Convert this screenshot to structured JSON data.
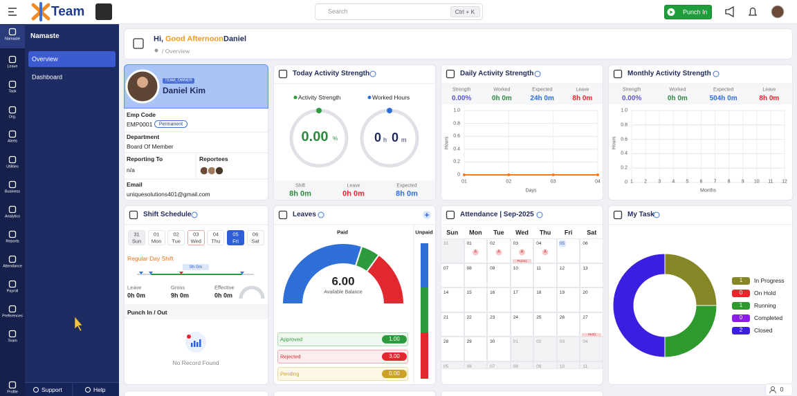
{
  "topbar": {
    "brand": "Team",
    "search_placeholder": "Search",
    "search_shortcut": "Ctrl + K",
    "punch_in": "Punch In"
  },
  "rail": [
    "Namaste",
    "Leave",
    "Task",
    "Org.",
    "Alerts",
    "Utilities",
    "Business",
    "Analytics",
    "Reports",
    "Attendance",
    "Payroll",
    "Preferences",
    "Team",
    "Profile"
  ],
  "sidebar": {
    "title": "Namaste",
    "items": [
      "Overview",
      "Dashboard"
    ],
    "support": "Support",
    "help": "Help"
  },
  "greeting": {
    "hi": "Hi,",
    "time_of_day": "Good Afternoon",
    "name": "Daniel",
    "breadcrumb": "/ Overview"
  },
  "profile": {
    "role": "TEAM_OWNER",
    "name": "Daniel Kim",
    "emp_code_label": "Emp Code",
    "emp_code": "EMP0001",
    "employment_type": "Permanent",
    "department_label": "Department",
    "department": "Board Of Member",
    "reporting_to_label": "Reporting To",
    "reporting_to": "n/a",
    "reportees_label": "Reportees",
    "email_label": "Email",
    "email": "uniquesolutions401@gmail.com"
  },
  "today_activity": {
    "title": "Today Activity Strength",
    "legend": [
      "Activity Strength",
      "Worked Hours"
    ],
    "strength": "0.00",
    "strength_unit": "%",
    "hours": "0",
    "hours_unit": "h",
    "minutes": "0",
    "minutes_unit": "m",
    "stats": [
      {
        "label": "Shift",
        "value": "8h 0m"
      },
      {
        "label": "Leave",
        "value": "0h 0m"
      },
      {
        "label": "Expected",
        "value": "8h 0m"
      }
    ]
  },
  "daily_activity": {
    "title": "Daily Activity Strength",
    "stats": [
      {
        "label": "Strength",
        "value": "0.00%"
      },
      {
        "label": "Worked",
        "value": "0h 0m"
      },
      {
        "label": "Expected",
        "value": "24h 0m"
      },
      {
        "label": "Leave",
        "value": "8h 0m"
      }
    ],
    "chart": {
      "type": "line",
      "y_label": "Hours",
      "x_label": "Days",
      "categories": [
        "01",
        "02",
        "03",
        "04"
      ],
      "values": [
        0,
        0,
        0,
        0
      ],
      "color": "#f07a1e",
      "ylim": [
        0,
        1
      ],
      "yticks": [
        0,
        0.2,
        0.4,
        0.6,
        0.8,
        {
          "value": 1,
          "label": "1.0"
        }
      ]
    }
  },
  "monthly_activity": {
    "title": "Monthly Activity Strength",
    "stats": [
      {
        "label": "Strength",
        "value": "0.00%"
      },
      {
        "label": "Worked",
        "value": "0h 0m"
      },
      {
        "label": "Expected",
        "value": "504h 0m"
      },
      {
        "label": "Leave",
        "value": "8h 0m"
      }
    ],
    "chart": {
      "type": "line",
      "y_label": "Hours",
      "x_label": "Months",
      "categories": [
        "1",
        "2",
        "3",
        "4",
        "5",
        "6",
        "7",
        "8",
        "9",
        "10",
        "11",
        "12"
      ],
      "ylim": [
        0,
        1
      ],
      "yticks": [
        0,
        0.2,
        0.4,
        0.6,
        0.8,
        {
          "value": 1,
          "label": "1.0"
        }
      ]
    }
  },
  "shift_schedule": {
    "title": "Shift Schedule",
    "days": [
      {
        "date": "31",
        "day": "Sun"
      },
      {
        "date": "01",
        "day": "Mon"
      },
      {
        "date": "02",
        "day": "Tue"
      },
      {
        "date": "03",
        "day": "Wed"
      },
      {
        "date": "04",
        "day": "Thu"
      },
      {
        "date": "05",
        "day": "Fri"
      },
      {
        "date": "06",
        "day": "Sat"
      }
    ],
    "active_day": 5,
    "shift_name": "Regular Day Shift",
    "duration": "9h 0m",
    "stats": [
      {
        "label": "Leave",
        "value": "0h 0m"
      },
      {
        "label": "Gross",
        "value": "9h 0m"
      },
      {
        "label": "Effective",
        "value": "0h 0m"
      }
    ],
    "punch_title": "Punch In / Out",
    "empty": "No Record Found"
  },
  "leaves": {
    "title": "Leaves",
    "paid_label": "Paid",
    "unpaid_label": "Unpaid",
    "balance": 6,
    "balance_label_value": "6.00",
    "balance_label": "Available Balance",
    "items": [
      {
        "label": "Approved",
        "value": 1,
        "value_label": "1.00",
        "color": "#2e9a3e"
      },
      {
        "label": "Rejected",
        "value": 3,
        "value_label": "3.00",
        "color": "#e0282e"
      },
      {
        "label": "Pending",
        "value": 0,
        "value_label": "0.00",
        "color": "#c9a227"
      }
    ],
    "balance_color": "#2f6fd8"
  },
  "attendance": {
    "title": "Attendance | Sep-2025",
    "weekdays": [
      "Sun",
      "Mon",
      "Tue",
      "Wed",
      "Thu",
      "Fri",
      "Sat"
    ],
    "weeks": [
      [
        {
          "date": "31",
          "outside": true
        },
        {
          "date": "01",
          "status": "A"
        },
        {
          "date": "02",
          "status": "A"
        },
        {
          "date": "03",
          "status": "A",
          "note": "PL(V1)"
        },
        {
          "date": "04",
          "status": "A"
        },
        {
          "date": "05",
          "today": true
        },
        {
          "date": "06"
        }
      ],
      [
        {
          "date": "07"
        },
        {
          "date": "08"
        },
        {
          "date": "09"
        },
        {
          "date": "10"
        },
        {
          "date": "11"
        },
        {
          "date": "12"
        },
        {
          "date": "13"
        }
      ],
      [
        {
          "date": "14"
        },
        {
          "date": "15"
        },
        {
          "date": "16"
        },
        {
          "date": "17"
        },
        {
          "date": "18"
        },
        {
          "date": "19"
        },
        {
          "date": "20"
        }
      ],
      [
        {
          "date": "21"
        },
        {
          "date": "22"
        },
        {
          "date": "23"
        },
        {
          "date": "24"
        },
        {
          "date": "25"
        },
        {
          "date": "26"
        },
        {
          "date": "27",
          "note": "UL(0)"
        }
      ],
      [
        {
          "date": "28"
        },
        {
          "date": "29"
        },
        {
          "date": "30"
        },
        {
          "date": "01",
          "outside": true
        },
        {
          "date": "02",
          "outside": true
        },
        {
          "date": "03",
          "outside": true
        },
        {
          "date": "04",
          "outside": true
        }
      ],
      [
        {
          "date": "05",
          "outside": true
        },
        {
          "date": "06",
          "outside": true
        },
        {
          "date": "07",
          "outside": true
        },
        {
          "date": "08",
          "outside": true
        },
        {
          "date": "09",
          "outside": true
        },
        {
          "date": "10",
          "outside": true
        },
        {
          "date": "11",
          "outside": true
        }
      ]
    ]
  },
  "my_task": {
    "title": "My Task",
    "type": "donut",
    "series": [
      {
        "name": "In Progress",
        "color": "#868626",
        "value": 1
      },
      {
        "name": "On Hold",
        "color": "#e8262b",
        "value": 0
      },
      {
        "name": "Running",
        "color": "#2e9a2e",
        "value": 1
      },
      {
        "name": "Completed",
        "color": "#8a1ee6",
        "value": 0
      },
      {
        "name": "Closed",
        "color": "#3a1fe0",
        "value": 2
      }
    ]
  },
  "footer": {
    "online": "0"
  }
}
